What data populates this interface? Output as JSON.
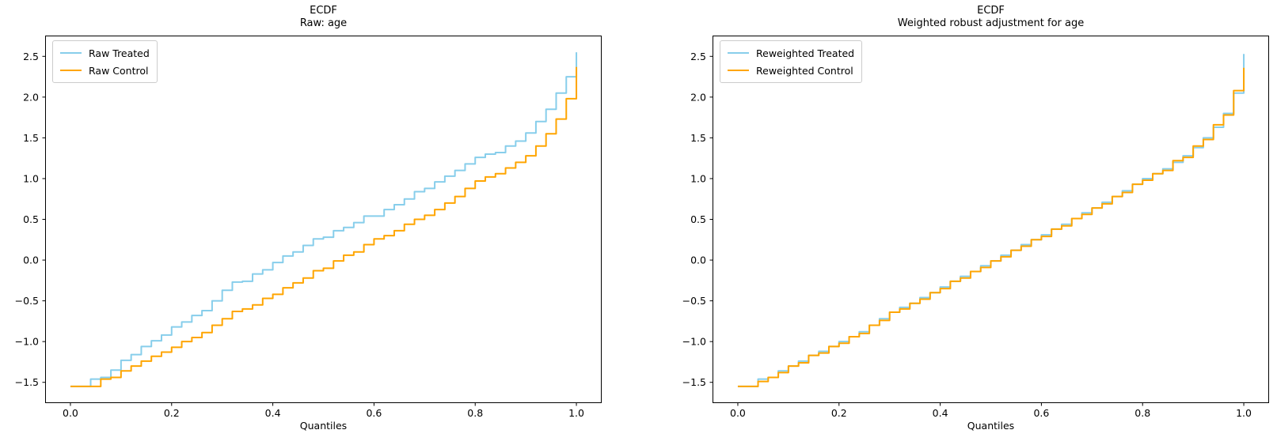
{
  "figure": {
    "background": "#ffffff",
    "text_color": "#000000",
    "spine_color": "#000000"
  },
  "chart_data": [
    {
      "type": "line",
      "step": true,
      "title": "ECDF",
      "subtitle": "Raw: age",
      "xlabel": "Quantiles",
      "ylabel": "",
      "grid": false,
      "legend_position": "upper-left",
      "xlim": [
        -0.05,
        1.05
      ],
      "ylim": [
        -1.755,
        2.755
      ],
      "xticks": [
        {
          "v": 0.0,
          "label": "0.0"
        },
        {
          "v": 0.2,
          "label": "0.2"
        },
        {
          "v": 0.4,
          "label": "0.4"
        },
        {
          "v": 0.6,
          "label": "0.6"
        },
        {
          "v": 0.8,
          "label": "0.8"
        },
        {
          "v": 1.0,
          "label": "1.0"
        }
      ],
      "yticks": [
        {
          "v": 2.5,
          "label": "2.5"
        },
        {
          "v": 2.0,
          "label": "2.0"
        },
        {
          "v": 1.5,
          "label": "1.5"
        },
        {
          "v": 1.0,
          "label": "1.0"
        },
        {
          "v": 0.5,
          "label": "0.5"
        },
        {
          "v": 0.0,
          "label": "0.0"
        },
        {
          "v": -0.5,
          "label": "−0.5"
        },
        {
          "v": -1.0,
          "label": "−1.0"
        },
        {
          "v": -1.5,
          "label": "−1.5"
        }
      ],
      "quantiles": [
        0.0,
        0.02,
        0.04,
        0.06,
        0.08,
        0.1,
        0.12,
        0.14,
        0.16,
        0.18,
        0.2,
        0.22,
        0.24,
        0.26,
        0.28,
        0.3,
        0.32,
        0.34,
        0.36,
        0.38,
        0.4,
        0.42,
        0.44,
        0.46,
        0.48,
        0.5,
        0.52,
        0.54,
        0.56,
        0.58,
        0.6,
        0.62,
        0.64,
        0.66,
        0.68,
        0.7,
        0.72,
        0.74,
        0.76,
        0.78,
        0.8,
        0.82,
        0.84,
        0.86,
        0.88,
        0.9,
        0.92,
        0.94,
        0.96,
        0.98,
        1.0
      ],
      "series": [
        {
          "name": "Raw Treated",
          "color": "#87CEEB",
          "values": [
            -1.55,
            -1.55,
            -1.46,
            -1.44,
            -1.35,
            -1.23,
            -1.16,
            -1.06,
            -0.99,
            -0.92,
            -0.82,
            -0.76,
            -0.68,
            -0.62,
            -0.5,
            -0.37,
            -0.27,
            -0.26,
            -0.17,
            -0.12,
            -0.03,
            0.05,
            0.1,
            0.18,
            0.26,
            0.28,
            0.36,
            0.4,
            0.46,
            0.54,
            0.54,
            0.62,
            0.68,
            0.75,
            0.84,
            0.88,
            0.96,
            1.03,
            1.1,
            1.18,
            1.26,
            1.3,
            1.32,
            1.4,
            1.46,
            1.56,
            1.7,
            1.85,
            2.05,
            2.25,
            2.55
          ]
        },
        {
          "name": "Raw Control",
          "color": "#FFA500",
          "values": [
            -1.55,
            -1.55,
            -1.55,
            -1.46,
            -1.44,
            -1.36,
            -1.3,
            -1.24,
            -1.18,
            -1.13,
            -1.07,
            -1.0,
            -0.95,
            -0.89,
            -0.8,
            -0.72,
            -0.63,
            -0.6,
            -0.55,
            -0.47,
            -0.42,
            -0.34,
            -0.28,
            -0.22,
            -0.13,
            -0.1,
            -0.01,
            0.06,
            0.1,
            0.19,
            0.26,
            0.3,
            0.36,
            0.44,
            0.5,
            0.55,
            0.62,
            0.7,
            0.78,
            0.88,
            0.97,
            1.02,
            1.06,
            1.13,
            1.2,
            1.28,
            1.4,
            1.55,
            1.73,
            1.98,
            2.37
          ]
        }
      ]
    },
    {
      "type": "line",
      "step": true,
      "title": "ECDF",
      "subtitle": "Weighted robust adjustment for age",
      "xlabel": "Quantiles",
      "ylabel": "",
      "grid": false,
      "legend_position": "upper-left",
      "xlim": [
        -0.05,
        1.05
      ],
      "ylim": [
        -1.755,
        2.755
      ],
      "xticks": [
        {
          "v": 0.0,
          "label": "0.0"
        },
        {
          "v": 0.2,
          "label": "0.2"
        },
        {
          "v": 0.4,
          "label": "0.4"
        },
        {
          "v": 0.6,
          "label": "0.6"
        },
        {
          "v": 0.8,
          "label": "0.8"
        },
        {
          "v": 1.0,
          "label": "1.0"
        }
      ],
      "yticks": [
        {
          "v": 2.5,
          "label": "2.5"
        },
        {
          "v": 2.0,
          "label": "2.0"
        },
        {
          "v": 1.5,
          "label": "1.5"
        },
        {
          "v": 1.0,
          "label": "1.0"
        },
        {
          "v": 0.5,
          "label": "0.5"
        },
        {
          "v": 0.0,
          "label": "0.0"
        },
        {
          "v": -0.5,
          "label": "−0.5"
        },
        {
          "v": -1.0,
          "label": "−1.0"
        },
        {
          "v": -1.5,
          "label": "−1.5"
        }
      ],
      "quantiles": [
        0.0,
        0.02,
        0.04,
        0.06,
        0.08,
        0.1,
        0.12,
        0.14,
        0.16,
        0.18,
        0.2,
        0.22,
        0.24,
        0.26,
        0.28,
        0.3,
        0.32,
        0.34,
        0.36,
        0.38,
        0.4,
        0.42,
        0.44,
        0.46,
        0.48,
        0.5,
        0.52,
        0.54,
        0.56,
        0.58,
        0.6,
        0.62,
        0.64,
        0.66,
        0.68,
        0.7,
        0.72,
        0.74,
        0.76,
        0.78,
        0.8,
        0.82,
        0.84,
        0.86,
        0.88,
        0.9,
        0.92,
        0.94,
        0.96,
        0.98,
        1.0
      ],
      "series": [
        {
          "name": "Reweighted Treated",
          "color": "#87CEEB",
          "values": [
            -1.55,
            -1.55,
            -1.46,
            -1.44,
            -1.36,
            -1.3,
            -1.24,
            -1.17,
            -1.12,
            -1.06,
            -1.0,
            -0.94,
            -0.88,
            -0.8,
            -0.72,
            -0.64,
            -0.58,
            -0.53,
            -0.46,
            -0.4,
            -0.33,
            -0.26,
            -0.2,
            -0.14,
            -0.07,
            -0.01,
            0.06,
            0.12,
            0.19,
            0.25,
            0.31,
            0.38,
            0.44,
            0.51,
            0.58,
            0.64,
            0.71,
            0.78,
            0.85,
            0.93,
            1.0,
            1.06,
            1.12,
            1.2,
            1.28,
            1.38,
            1.5,
            1.63,
            1.8,
            2.05,
            2.53
          ]
        },
        {
          "name": "Reweighted Control",
          "color": "#FFA500",
          "values": [
            -1.55,
            -1.55,
            -1.49,
            -1.44,
            -1.38,
            -1.3,
            -1.26,
            -1.17,
            -1.14,
            -1.06,
            -1.02,
            -0.94,
            -0.9,
            -0.8,
            -0.74,
            -0.64,
            -0.6,
            -0.53,
            -0.48,
            -0.4,
            -0.35,
            -0.26,
            -0.22,
            -0.14,
            -0.09,
            -0.01,
            0.04,
            0.12,
            0.17,
            0.25,
            0.29,
            0.38,
            0.42,
            0.51,
            0.56,
            0.64,
            0.69,
            0.78,
            0.83,
            0.93,
            0.98,
            1.06,
            1.1,
            1.22,
            1.26,
            1.4,
            1.48,
            1.66,
            1.78,
            2.08,
            2.36
          ]
        }
      ]
    }
  ]
}
